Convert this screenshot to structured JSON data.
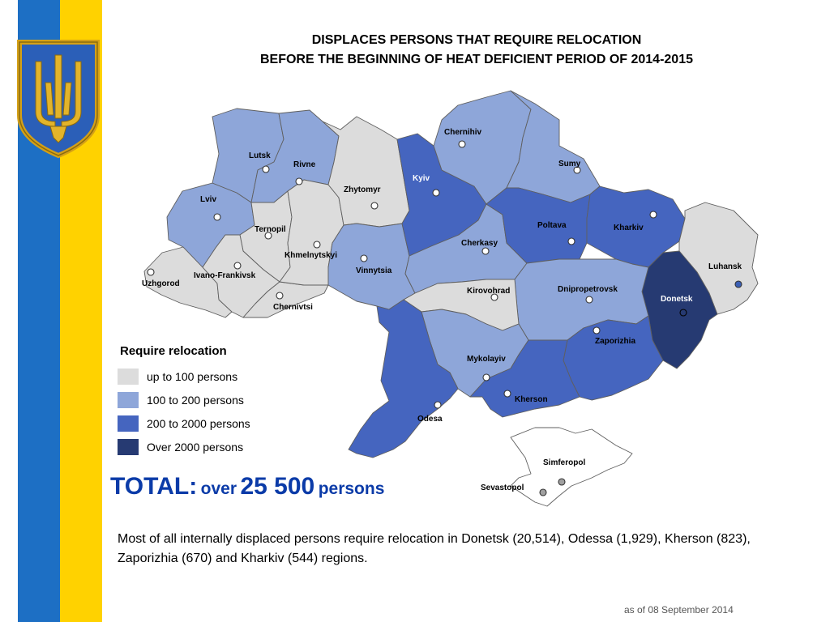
{
  "title": {
    "line1": "DISPLACES PERSONS THAT REQUIRE RELOCATION",
    "line2": "BEFORE THE BEGINNING OF HEAT DEFICIENT PERIOD OF 2014-2015"
  },
  "colors": {
    "flag_blue": "#1d6fc4",
    "flag_yellow": "#ffd200",
    "emblem_gold": "#d4a017",
    "level_1": "#dcdcdc",
    "level_2": "#8ea6d9",
    "level_3": "#4565bf",
    "level_4": "#263a72",
    "total_blue": "#0b3ba8"
  },
  "map": {
    "cities": {
      "chernihiv": "Chernihiv",
      "sumy": "Sumy",
      "lutsk": "Lutsk",
      "rivne": "Rivne",
      "zhytomyr": "Zhytomyr",
      "kyiv": "Kyiv",
      "lviv": "Lviv",
      "ternopil": "Ternopil",
      "khmelnytskyi": "Khmelnytskyi",
      "poltava": "Poltava",
      "kharkiv": "Kharkiv",
      "luhansk": "Luhansk",
      "uzhgorod": "Uzhgorod",
      "ivano_frankivsk": "Ivano-Frankivsk",
      "vinnytsia": "Vinnytsia",
      "cherkasy": "Cherkasy",
      "kirovohrad": "Kirovohrad",
      "dnipropetrovsk": "Dnipropetrovsk",
      "donetsk": "Donetsk",
      "chernivtsi": "Chernivtsi",
      "zaporizhia": "Zaporizhia",
      "mykolayiv": "Mykolayiv",
      "kherson": "Kherson",
      "odesa": "Odesa",
      "simferopol": "Simferopol",
      "sevastopol": "Sevastopol"
    },
    "region_levels": {
      "Zakarpattia": 1,
      "Lviv": 2,
      "Volyn": 2,
      "Rivne": 2,
      "Ternopil": 1,
      "Ivano-Frankivsk": 1,
      "Chernivtsi": 1,
      "Khmelnytskyi": 1,
      "Zhytomyr": 1,
      "Vinnytsia": 2,
      "Kyiv": 3,
      "Chernihiv": 2,
      "Sumy": 2,
      "Poltava": 3,
      "Kharkiv": 3,
      "Luhansk": 1,
      "Donetsk": 4,
      "Dnipropetrovsk": 2,
      "Zaporizhia": 3,
      "Kherson": 3,
      "Mykolayiv": 2,
      "Odesa": 3,
      "Kirovohrad": 1,
      "Cherkasy": 2,
      "Crimea": 0
    }
  },
  "legend": {
    "title": "Require relocation",
    "items": [
      {
        "label": "up to 100 persons"
      },
      {
        "label": "100 to 200 persons"
      },
      {
        "label": "200 to 2000 persons"
      },
      {
        "label": "Over 2000 persons"
      }
    ]
  },
  "total": {
    "prefix": "TOTAL:",
    "over": "over",
    "value": "25 500",
    "unit": "persons"
  },
  "note": "Most of all internally displaced persons require relocation in Donetsk (20,514), Odessa (1,929), Kherson (823), Zaporizhia (670) and Kharkiv (544) regions.",
  "as_of": "as of  08 September 2014"
}
